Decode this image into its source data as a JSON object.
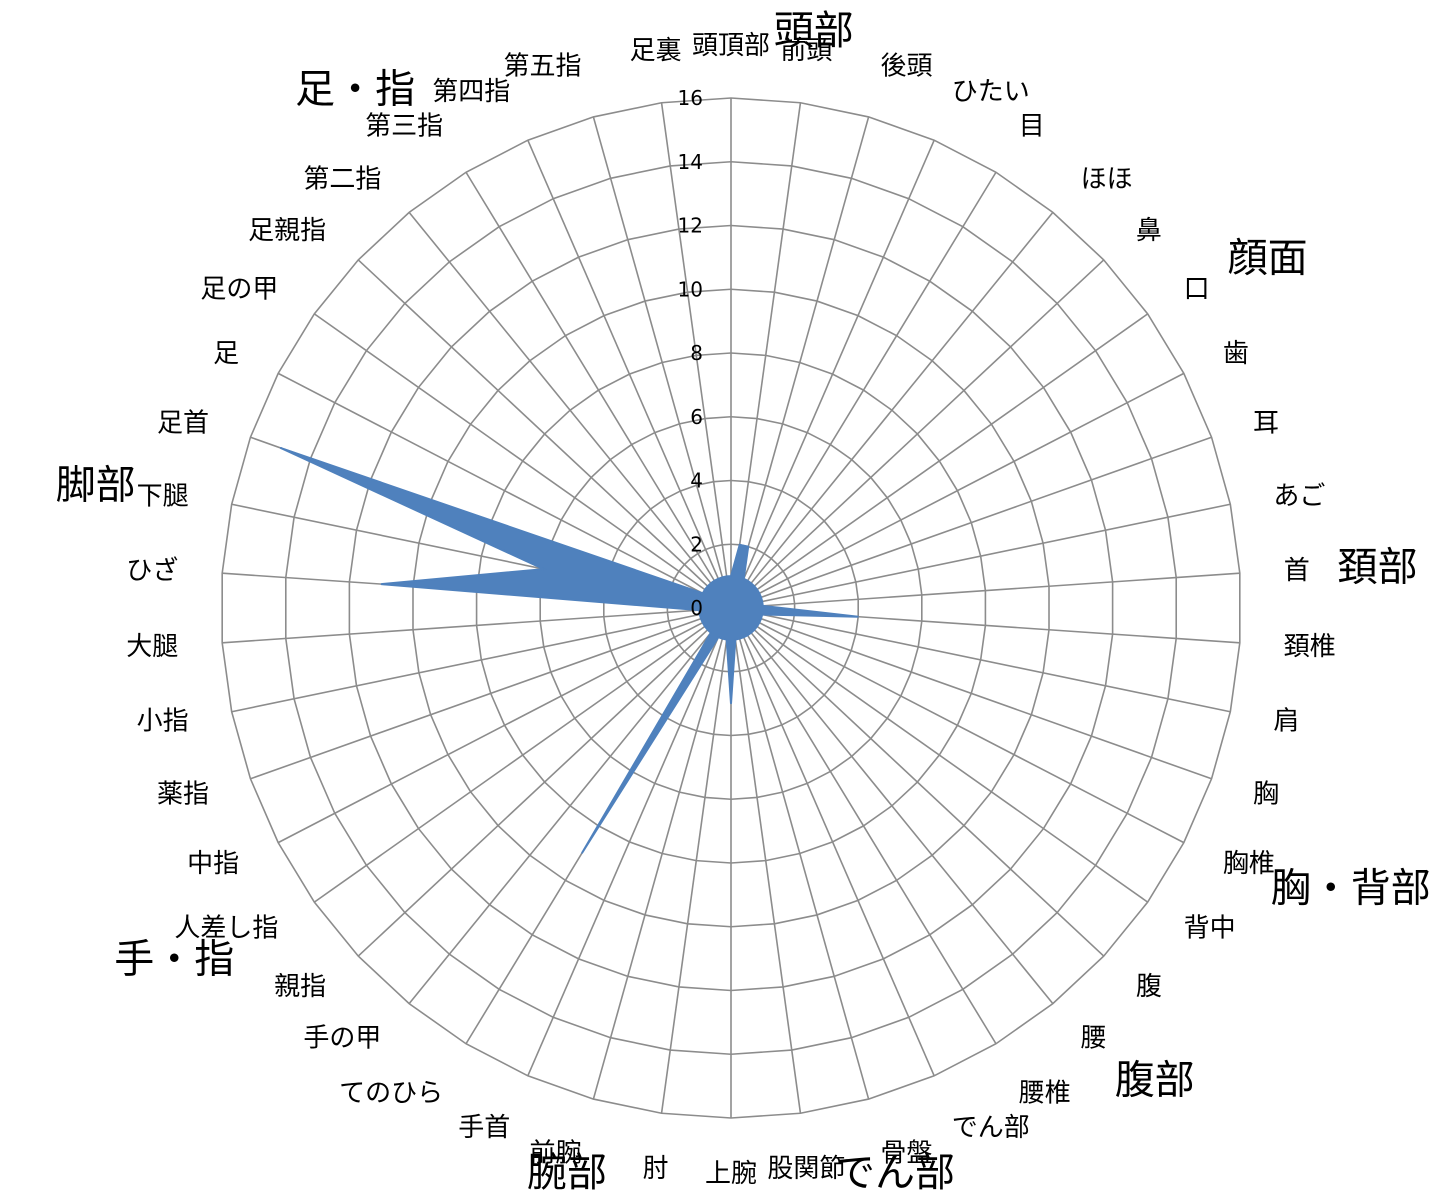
{
  "chart_data": {
    "type": "radar",
    "colors": {
      "series": "#4f81bd",
      "grid": "#8c8c8c"
    },
    "rlim": [
      0,
      16
    ],
    "ticks": [
      0,
      2,
      4,
      6,
      8,
      10,
      12,
      14,
      16
    ],
    "categories": [
      "頭頂部",
      "前頭",
      "後頭",
      "ひたい",
      "目",
      "ほほ",
      "鼻",
      "口",
      "歯",
      "耳",
      "あご",
      "首",
      "頚椎",
      "肩",
      "胸",
      "胸椎",
      "背中",
      "腹",
      "腰",
      "腰椎",
      "でん部",
      "骨盤",
      "股関節",
      "上腕",
      "肘",
      "前腕",
      "手首",
      "てのひら",
      "手の甲",
      "親指",
      "人差し指",
      "中指",
      "薬指",
      "小指",
      "大腿",
      "ひざ",
      "下腿",
      "足首",
      "足",
      "足の甲",
      "足親指",
      "第二指",
      "第三指",
      "第四指",
      "第五指",
      "足裏"
    ],
    "values": [
      1,
      2,
      2,
      1,
      1,
      1,
      1,
      1,
      1,
      1,
      1,
      1,
      4,
      1,
      1,
      1,
      1,
      1,
      1,
      1,
      1,
      1,
      1,
      3,
      1,
      1,
      1,
      9,
      1,
      1,
      1,
      1,
      1,
      1,
      1,
      11,
      6,
      15,
      1,
      1,
      1,
      1,
      1,
      1,
      1,
      1
    ],
    "groups": [
      {
        "label": "頭部",
        "category": 1
      },
      {
        "label": "顔面",
        "category": 7
      },
      {
        "label": "頚部",
        "category": 11
      },
      {
        "label": "胸・背部",
        "category": 15
      },
      {
        "label": "腹部",
        "category": 18
      },
      {
        "label": "でん部",
        "category": 21
      },
      {
        "label": "腕部",
        "category": 25
      },
      {
        "label": "手・指",
        "category": 30
      },
      {
        "label": "脚部",
        "category": 36
      },
      {
        "label": "足・指",
        "category": 42
      }
    ]
  }
}
